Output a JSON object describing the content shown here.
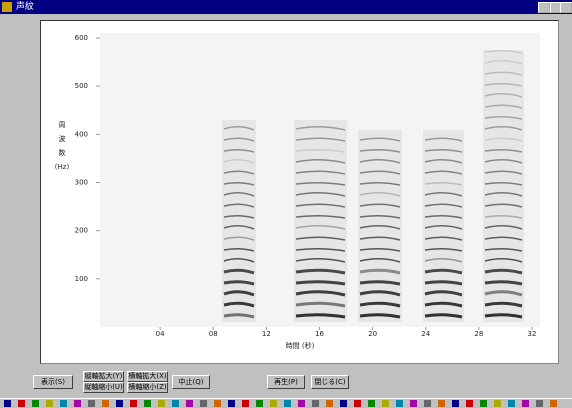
{
  "window": {
    "title": "声紋"
  },
  "chart_data": {
    "type": "spectrogram",
    "ylabel": [
      "周",
      "波",
      "数",
      "(Hz)"
    ],
    "xlabel": "時間 (秒)",
    "xlim": [
      0,
      32
    ],
    "ylim": [
      0,
      600
    ],
    "xticks": [
      {
        "value": 4,
        "label": "04"
      },
      {
        "value": 8,
        "label": "08"
      },
      12,
      16,
      20,
      24,
      28,
      32
    ],
    "yticks": [
      100,
      200,
      300,
      400,
      500,
      600
    ]
  },
  "buttons": [
    "表示(S)",
    [
      "縦軸拡大(Y)",
      "縦軸縮小(U)"
    ],
    [
      "横軸拡大(X)",
      "横軸縮小(Z)"
    ],
    "中止(Q)",
    "再生(P)",
    "閉じる(C)"
  ]
}
